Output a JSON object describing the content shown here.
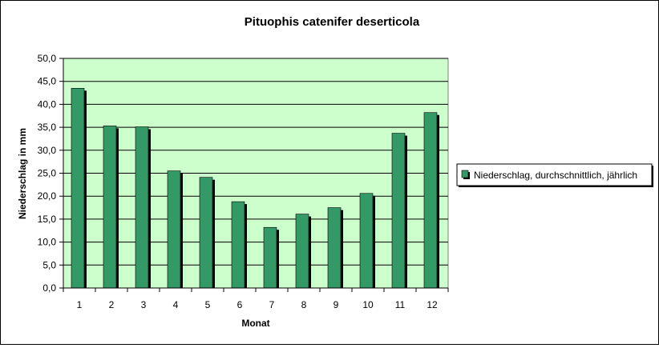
{
  "chart_data": {
    "type": "bar",
    "title": "Pituophis catenifer deserticola",
    "xlabel": "Monat",
    "ylabel": "Niederschlag in mm",
    "categories": [
      "1",
      "2",
      "3",
      "4",
      "5",
      "6",
      "7",
      "8",
      "9",
      "10",
      "11",
      "12"
    ],
    "series": [
      {
        "name": "Niederschlag, durchschnittlich, jährlich",
        "values": [
          43.5,
          35.3,
          35.1,
          25.5,
          24.1,
          18.8,
          13.2,
          16.1,
          17.5,
          20.6,
          33.7,
          38.2
        ]
      }
    ],
    "ylim": [
      0,
      50
    ],
    "yticks": [
      "0,0",
      "5,0",
      "10,0",
      "15,0",
      "20,0",
      "25,0",
      "30,0",
      "35,0",
      "40,0",
      "45,0",
      "50,0"
    ],
    "grid": true,
    "legend_position": "right",
    "colors": {
      "bar": "#339966",
      "plot_background": "#ccffcc",
      "shadow": "#000000"
    }
  }
}
